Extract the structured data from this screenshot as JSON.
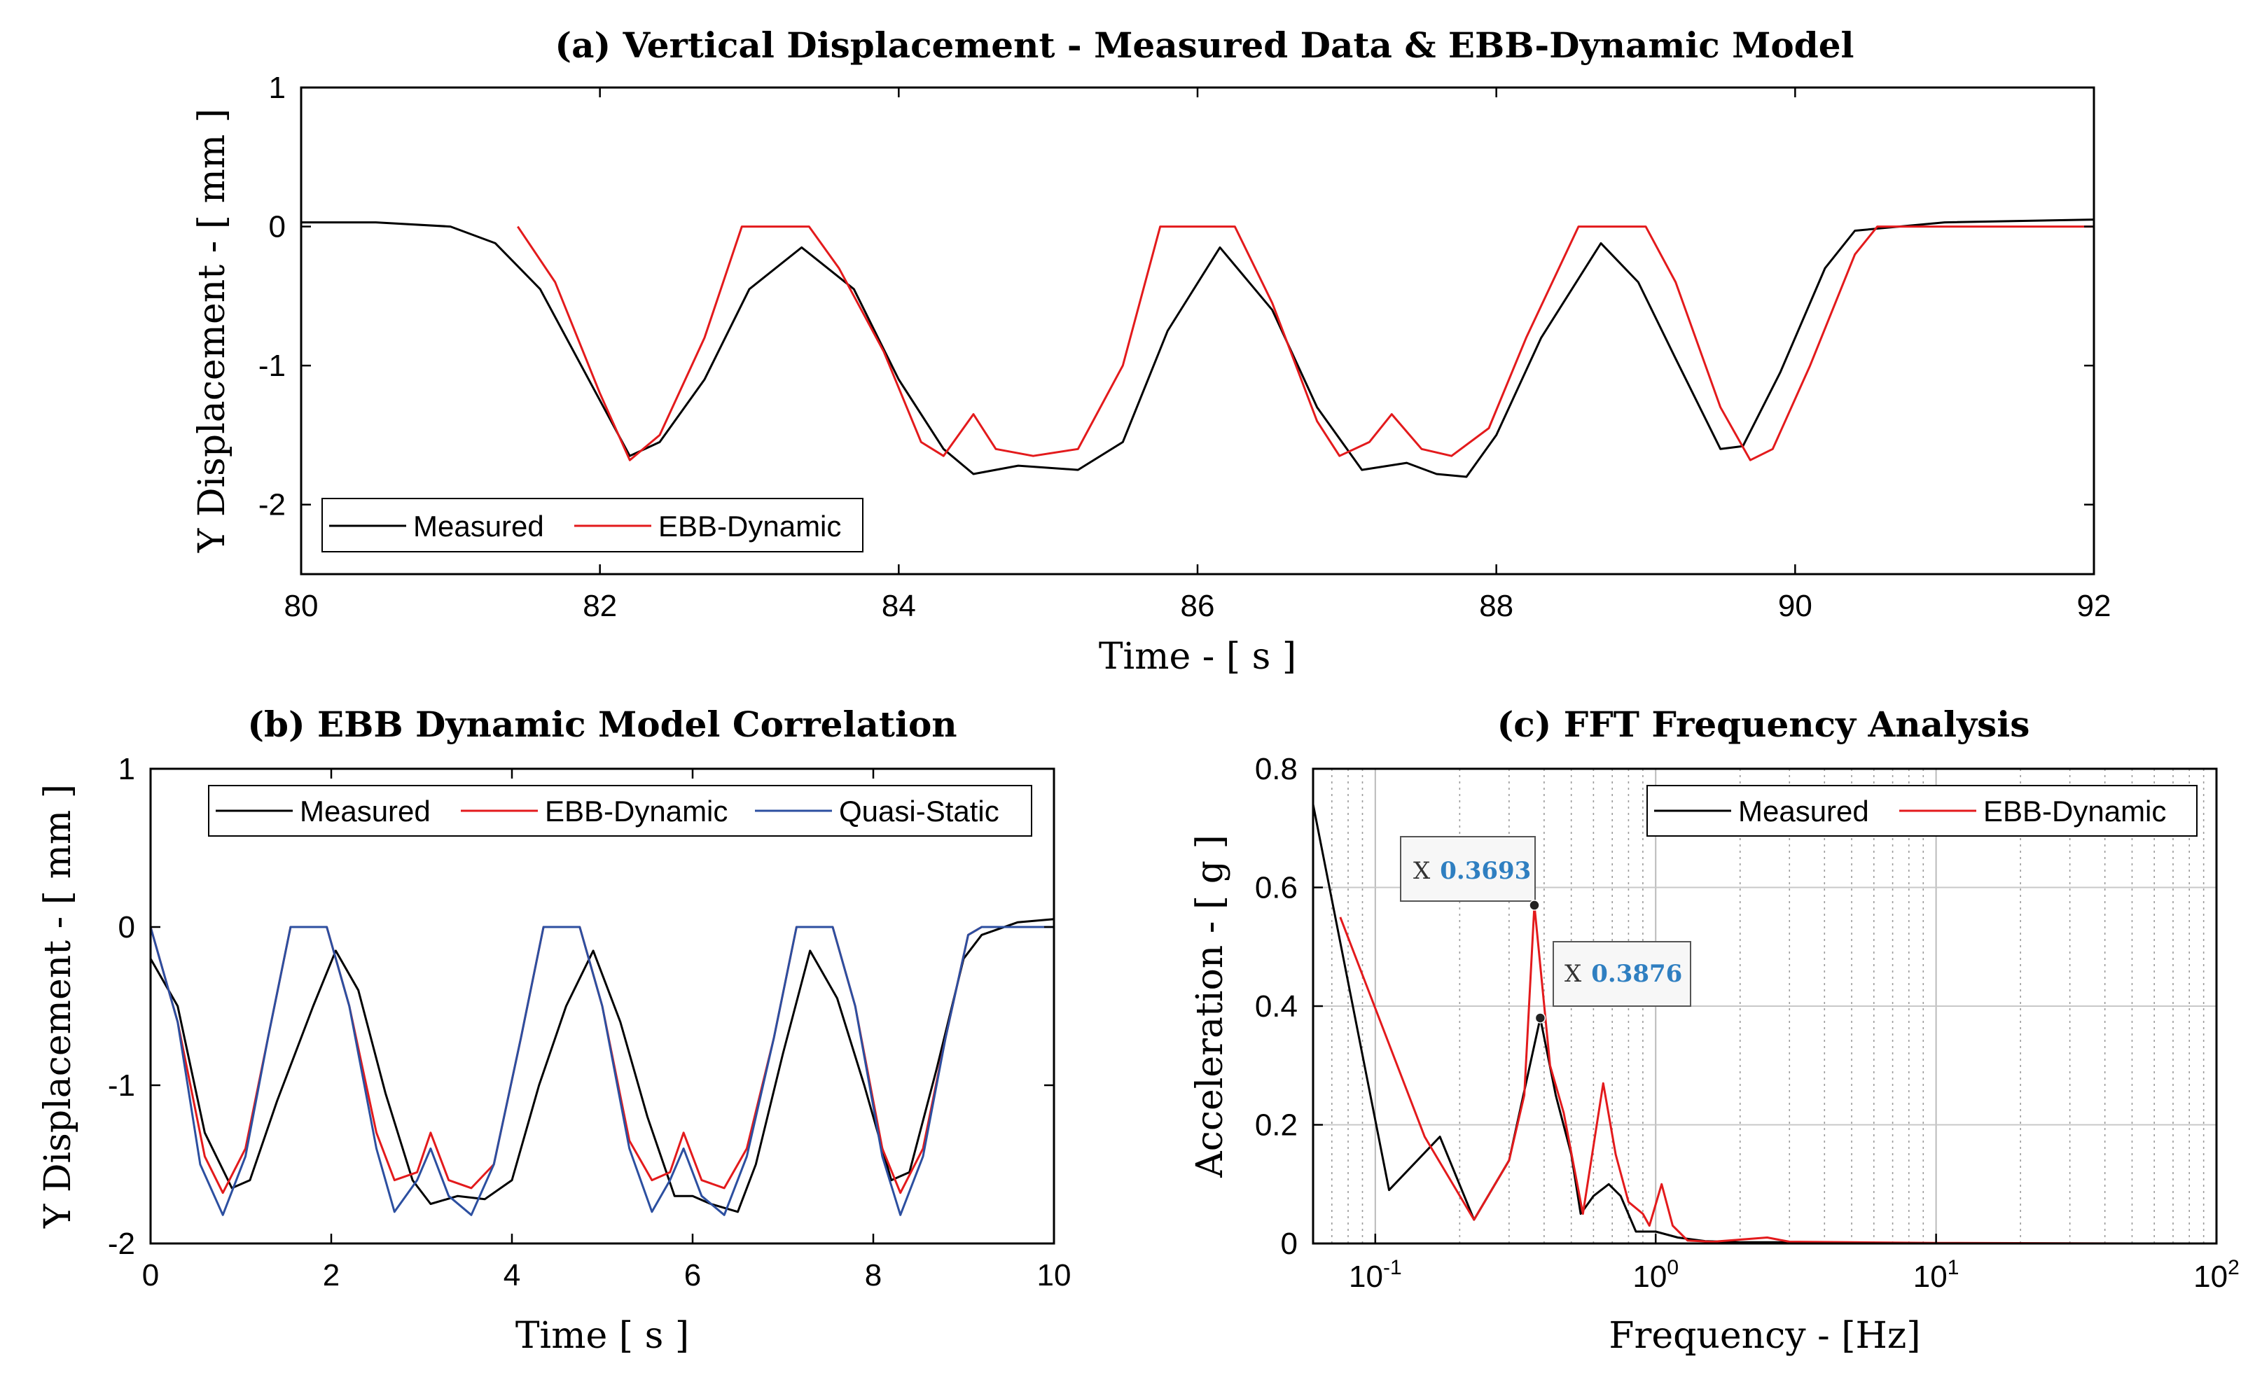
{
  "chart_data": [
    {
      "id": "a",
      "type": "line",
      "title": "(a) Vertical Displacement - Measured Data & EBB-Dynamic Model",
      "xlabel": "Time - [ s ]",
      "ylabel": "Y Displacement - [ mm ]",
      "xlim": [
        80,
        92
      ],
      "ylim": [
        -2.5,
        1
      ],
      "xticks": [
        80,
        82,
        84,
        86,
        88,
        90,
        92
      ],
      "yticks": [
        -2,
        -1,
        0,
        1
      ],
      "grid": false,
      "legend": {
        "entries": [
          "Measured",
          "EBB-Dynamic"
        ],
        "placement": "bottom-left"
      },
      "series": [
        {
          "name": "Measured",
          "color": "#000000",
          "points": [
            [
              80,
              0.03
            ],
            [
              80.5,
              0.03
            ],
            [
              81,
              0.0
            ],
            [
              81.3,
              -0.12
            ],
            [
              81.6,
              -0.45
            ],
            [
              81.9,
              -1.05
            ],
            [
              82.2,
              -1.65
            ],
            [
              82.4,
              -1.55
            ],
            [
              82.7,
              -1.1
            ],
            [
              83.0,
              -0.45
            ],
            [
              83.35,
              -0.15
            ],
            [
              83.7,
              -0.45
            ],
            [
              84.0,
              -1.1
            ],
            [
              84.3,
              -1.6
            ],
            [
              84.5,
              -1.78
            ],
            [
              84.8,
              -1.72
            ],
            [
              85.2,
              -1.75
            ],
            [
              85.5,
              -1.55
            ],
            [
              85.8,
              -0.75
            ],
            [
              86.15,
              -0.15
            ],
            [
              86.5,
              -0.6
            ],
            [
              86.8,
              -1.3
            ],
            [
              87.1,
              -1.75
            ],
            [
              87.4,
              -1.7
            ],
            [
              87.6,
              -1.78
            ],
            [
              87.8,
              -1.8
            ],
            [
              88.0,
              -1.5
            ],
            [
              88.3,
              -0.8
            ],
            [
              88.7,
              -0.12
            ],
            [
              88.95,
              -0.4
            ],
            [
              89.2,
              -0.95
            ],
            [
              89.5,
              -1.6
            ],
            [
              89.65,
              -1.58
            ],
            [
              89.9,
              -1.05
            ],
            [
              90.2,
              -0.3
            ],
            [
              90.4,
              -0.03
            ],
            [
              91,
              0.03
            ],
            [
              92,
              0.05
            ]
          ]
        },
        {
          "name": "EBB-Dynamic",
          "color": "#e31a1c",
          "points": [
            [
              81.45,
              0.0
            ],
            [
              81.7,
              -0.4
            ],
            [
              82.0,
              -1.2
            ],
            [
              82.2,
              -1.68
            ],
            [
              82.4,
              -1.5
            ],
            [
              82.7,
              -0.8
            ],
            [
              82.95,
              0.0
            ],
            [
              83.4,
              0.0
            ],
            [
              83.6,
              -0.3
            ],
            [
              83.9,
              -0.9
            ],
            [
              84.15,
              -1.55
            ],
            [
              84.3,
              -1.65
            ],
            [
              84.5,
              -1.35
            ],
            [
              84.65,
              -1.6
            ],
            [
              84.9,
              -1.65
            ],
            [
              85.2,
              -1.6
            ],
            [
              85.5,
              -1.0
            ],
            [
              85.75,
              0.0
            ],
            [
              86.25,
              0.0
            ],
            [
              86.5,
              -0.55
            ],
            [
              86.8,
              -1.4
            ],
            [
              86.95,
              -1.65
            ],
            [
              87.15,
              -1.55
            ],
            [
              87.3,
              -1.35
            ],
            [
              87.5,
              -1.6
            ],
            [
              87.7,
              -1.65
            ],
            [
              87.95,
              -1.45
            ],
            [
              88.2,
              -0.8
            ],
            [
              88.55,
              0.0
            ],
            [
              89.0,
              0.0
            ],
            [
              89.2,
              -0.4
            ],
            [
              89.5,
              -1.3
            ],
            [
              89.7,
              -1.68
            ],
            [
              89.85,
              -1.6
            ],
            [
              90.1,
              -1.0
            ],
            [
              90.4,
              -0.2
            ],
            [
              90.55,
              0.0
            ],
            [
              92,
              0.0
            ]
          ]
        }
      ]
    },
    {
      "id": "b",
      "type": "line",
      "title": "(b) EBB Dynamic Model Correlation",
      "xlabel": "Time [ s ]",
      "ylabel": "Y Displacement - [ mm ]",
      "xlim": [
        0,
        10
      ],
      "ylim": [
        -2,
        1
      ],
      "xticks": [
        0,
        2,
        4,
        6,
        8,
        10
      ],
      "yticks": [
        -2,
        -1,
        0,
        1
      ],
      "grid": false,
      "legend": {
        "entries": [
          "Measured",
          "EBB-Dynamic",
          "Quasi-Static"
        ],
        "placement": "top"
      },
      "series": [
        {
          "name": "Measured",
          "color": "#000000",
          "points": [
            [
              0,
              -0.2
            ],
            [
              0.3,
              -0.5
            ],
            [
              0.6,
              -1.3
            ],
            [
              0.9,
              -1.65
            ],
            [
              1.1,
              -1.6
            ],
            [
              1.4,
              -1.1
            ],
            [
              1.8,
              -0.5
            ],
            [
              2.05,
              -0.15
            ],
            [
              2.3,
              -0.4
            ],
            [
              2.6,
              -1.05
            ],
            [
              2.9,
              -1.6
            ],
            [
              3.1,
              -1.75
            ],
            [
              3.4,
              -1.7
            ],
            [
              3.7,
              -1.72
            ],
            [
              4.0,
              -1.6
            ],
            [
              4.3,
              -1.0
            ],
            [
              4.6,
              -0.5
            ],
            [
              4.9,
              -0.15
            ],
            [
              5.2,
              -0.6
            ],
            [
              5.5,
              -1.2
            ],
            [
              5.8,
              -1.7
            ],
            [
              6.0,
              -1.7
            ],
            [
              6.2,
              -1.75
            ],
            [
              6.5,
              -1.8
            ],
            [
              6.7,
              -1.5
            ],
            [
              7.0,
              -0.8
            ],
            [
              7.3,
              -0.15
            ],
            [
              7.6,
              -0.45
            ],
            [
              7.9,
              -1.0
            ],
            [
              8.2,
              -1.6
            ],
            [
              8.4,
              -1.55
            ],
            [
              8.7,
              -0.9
            ],
            [
              9.0,
              -0.2
            ],
            [
              9.2,
              -0.05
            ],
            [
              9.6,
              0.03
            ],
            [
              10,
              0.05
            ]
          ]
        },
        {
          "name": "EBB-Dynamic",
          "color": "#e31a1c",
          "points": [
            [
              0,
              0.0
            ],
            [
              0.3,
              -0.6
            ],
            [
              0.6,
              -1.45
            ],
            [
              0.8,
              -1.68
            ],
            [
              1.05,
              -1.4
            ],
            [
              1.3,
              -0.7
            ],
            [
              1.55,
              0.0
            ],
            [
              1.95,
              0.0
            ],
            [
              2.2,
              -0.5
            ],
            [
              2.5,
              -1.3
            ],
            [
              2.7,
              -1.6
            ],
            [
              2.95,
              -1.55
            ],
            [
              3.1,
              -1.3
            ],
            [
              3.3,
              -1.6
            ],
            [
              3.55,
              -1.65
            ],
            [
              3.8,
              -1.5
            ],
            [
              4.1,
              -0.7
            ],
            [
              4.35,
              0.0
            ],
            [
              4.75,
              0.0
            ],
            [
              5.0,
              -0.5
            ],
            [
              5.3,
              -1.35
            ],
            [
              5.55,
              -1.6
            ],
            [
              5.75,
              -1.55
            ],
            [
              5.9,
              -1.3
            ],
            [
              6.1,
              -1.6
            ],
            [
              6.35,
              -1.65
            ],
            [
              6.6,
              -1.4
            ],
            [
              6.9,
              -0.7
            ],
            [
              7.15,
              0.0
            ],
            [
              7.55,
              0.0
            ],
            [
              7.8,
              -0.5
            ],
            [
              8.1,
              -1.4
            ],
            [
              8.3,
              -1.68
            ],
            [
              8.55,
              -1.4
            ],
            [
              8.8,
              -0.7
            ],
            [
              9.05,
              -0.05
            ],
            [
              9.2,
              0.0
            ],
            [
              10,
              0.0
            ]
          ]
        },
        {
          "name": "Quasi-Static",
          "color": "#2c4fa0",
          "points": [
            [
              0,
              0.0
            ],
            [
              0.3,
              -0.6
            ],
            [
              0.55,
              -1.5
            ],
            [
              0.8,
              -1.82
            ],
            [
              1.05,
              -1.45
            ],
            [
              1.3,
              -0.7
            ],
            [
              1.55,
              0.0
            ],
            [
              1.95,
              0.0
            ],
            [
              2.2,
              -0.5
            ],
            [
              2.5,
              -1.4
            ],
            [
              2.7,
              -1.8
            ],
            [
              2.95,
              -1.6
            ],
            [
              3.1,
              -1.4
            ],
            [
              3.3,
              -1.7
            ],
            [
              3.55,
              -1.82
            ],
            [
              3.8,
              -1.5
            ],
            [
              4.1,
              -0.7
            ],
            [
              4.35,
              0.0
            ],
            [
              4.75,
              0.0
            ],
            [
              5.0,
              -0.5
            ],
            [
              5.3,
              -1.4
            ],
            [
              5.55,
              -1.8
            ],
            [
              5.75,
              -1.6
            ],
            [
              5.9,
              -1.4
            ],
            [
              6.1,
              -1.7
            ],
            [
              6.35,
              -1.82
            ],
            [
              6.6,
              -1.45
            ],
            [
              6.9,
              -0.7
            ],
            [
              7.15,
              0.0
            ],
            [
              7.55,
              0.0
            ],
            [
              7.8,
              -0.5
            ],
            [
              8.1,
              -1.45
            ],
            [
              8.3,
              -1.82
            ],
            [
              8.55,
              -1.45
            ],
            [
              8.8,
              -0.7
            ],
            [
              9.05,
              -0.05
            ],
            [
              9.2,
              0.0
            ],
            [
              10,
              0.0
            ]
          ]
        }
      ]
    },
    {
      "id": "c",
      "type": "line",
      "title": "(c) FFT Frequency Analysis",
      "xlabel": "Frequency - [Hz]",
      "ylabel": "Acceleration - [ g ]",
      "xscale": "log",
      "xlim": [
        0.06,
        100
      ],
      "ylim": [
        0,
        0.8
      ],
      "xticks": [
        0.1,
        1,
        10,
        100
      ],
      "xtick_labels": [
        [
          "10",
          "-1"
        ],
        [
          "10",
          "0"
        ],
        [
          "10",
          "1"
        ],
        [
          "10",
          "2"
        ]
      ],
      "yticks": [
        0,
        0.2,
        0.4,
        0.6,
        0.8
      ],
      "grid": true,
      "legend": {
        "entries": [
          "Measured",
          "EBB-Dynamic"
        ],
        "placement": "top-right"
      },
      "series": [
        {
          "name": "Measured",
          "color": "#000000",
          "points": [
            [
              0.06,
              0.74
            ],
            [
              0.112,
              0.09
            ],
            [
              0.17,
              0.18
            ],
            [
              0.225,
              0.04
            ],
            [
              0.3,
              0.14
            ],
            [
              0.3876,
              0.38
            ],
            [
              0.44,
              0.25
            ],
            [
              0.5,
              0.15
            ],
            [
              0.54,
              0.05
            ],
            [
              0.6,
              0.08
            ],
            [
              0.68,
              0.1
            ],
            [
              0.75,
              0.08
            ],
            [
              0.85,
              0.02
            ],
            [
              1.0,
              0.02
            ],
            [
              1.2,
              0.01
            ],
            [
              1.5,
              0.004
            ],
            [
              2,
              0.002
            ],
            [
              3,
              0.002
            ],
            [
              5,
              0.001
            ]
          ]
        },
        {
          "name": "EBB-Dynamic",
          "color": "#e31a1c",
          "points": [
            [
              0.075,
              0.55
            ],
            [
              0.15,
              0.18
            ],
            [
              0.225,
              0.04
            ],
            [
              0.3,
              0.14
            ],
            [
              0.34,
              0.25
            ],
            [
              0.3693,
              0.57
            ],
            [
              0.42,
              0.3
            ],
            [
              0.47,
              0.22
            ],
            [
              0.55,
              0.05
            ],
            [
              0.65,
              0.27
            ],
            [
              0.72,
              0.15
            ],
            [
              0.8,
              0.07
            ],
            [
              0.9,
              0.05
            ],
            [
              0.95,
              0.03
            ],
            [
              1.05,
              0.1
            ],
            [
              1.15,
              0.03
            ],
            [
              1.3,
              0.005
            ],
            [
              1.6,
              0.003
            ],
            [
              2.5,
              0.01
            ],
            [
              3,
              0.003
            ],
            [
              5,
              0.002
            ],
            [
              10,
              0.001
            ],
            [
              50,
              0.0
            ]
          ]
        }
      ],
      "annotations": [
        {
          "label": "X",
          "value": "0.3693",
          "x": 0.3693,
          "y": 0.57
        },
        {
          "label": "X",
          "value": "0.3876",
          "x": 0.3876,
          "y": 0.38
        }
      ]
    }
  ]
}
